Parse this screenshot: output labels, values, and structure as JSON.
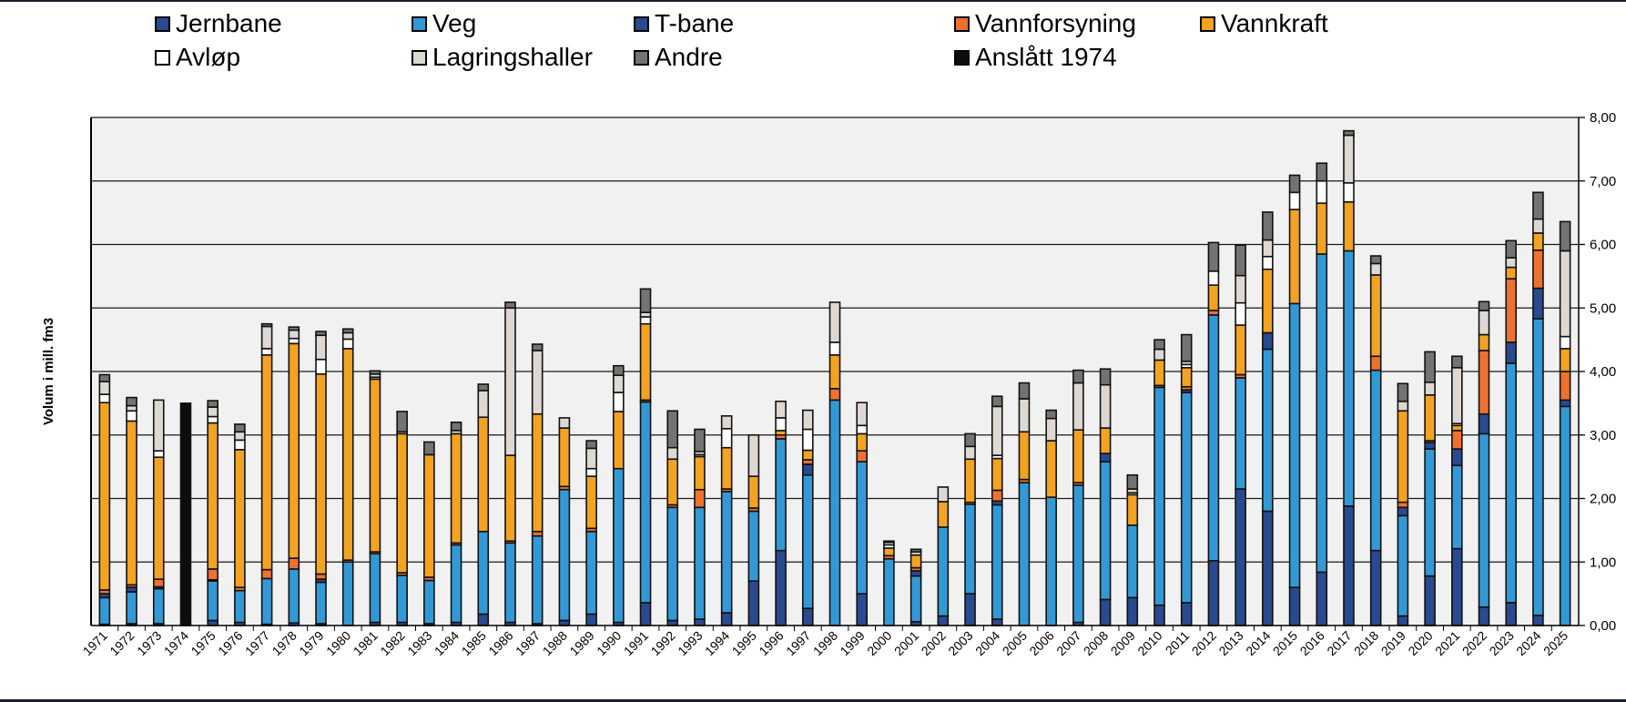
{
  "chart_data": {
    "type": "bar",
    "stacked": true,
    "title": "",
    "xlabel": "",
    "ylabel": "Volum i mill. fm3",
    "ylim": [
      0,
      8
    ],
    "yticks": [
      "0,00",
      "1,00",
      "2,00",
      "3,00",
      "4,00",
      "5,00",
      "6,00",
      "7,00",
      "8,00"
    ],
    "y_axis_side": "right",
    "grid": true,
    "legend_position": "top",
    "categories": [
      "1971",
      "1972",
      "1973",
      "1974",
      "1975",
      "1976",
      "1977",
      "1978",
      "1979",
      "1980",
      "1981",
      "1982",
      "1983",
      "1984",
      "1985",
      "1986",
      "1987",
      "1988",
      "1989",
      "1990",
      "1991",
      "1992",
      "1993",
      "1994",
      "1995",
      "1996",
      "1997",
      "1998",
      "1999",
      "2000",
      "2001",
      "2002",
      "2003",
      "2004",
      "2005",
      "2006",
      "2007",
      "2008",
      "2009",
      "2010",
      "2011",
      "2012",
      "2013",
      "2014",
      "2015",
      "2016",
      "2017",
      "2018",
      "2019",
      "2020",
      "2021",
      "2022",
      "2023",
      "2024",
      "2025"
    ],
    "series": [
      {
        "name": "Jernbane",
        "color": "#2a4a8f",
        "values": [
          0.02,
          0.03,
          0.03,
          0,
          0.08,
          0.05,
          0.02,
          0.04,
          0.03,
          0,
          0.05,
          0.05,
          0.03,
          0.05,
          0.18,
          0.05,
          0.03,
          0.08,
          0.18,
          0.05,
          0.36,
          0.08,
          0.1,
          0.2,
          0.7,
          1.18,
          0.27,
          0,
          0.5,
          0,
          0.06,
          0.15,
          0.5,
          0.1,
          0,
          0,
          0.05,
          0.41,
          0.44,
          0.32,
          0.36,
          1.02,
          2.15,
          1.8,
          0.6,
          0.84,
          1.88,
          1.18,
          0.15,
          0.78,
          1.21,
          0.29,
          0.36,
          0.16,
          0
        ]
      },
      {
        "name": "Veg",
        "color": "#3399d6",
        "values": [
          0.42,
          0.5,
          0.55,
          0,
          0.62,
          0.5,
          0.72,
          0.85,
          0.65,
          1.0,
          1.08,
          0.74,
          0.68,
          1.22,
          1.3,
          1.25,
          1.38,
          2.06,
          1.3,
          2.42,
          3.16,
          1.78,
          1.76,
          1.91,
          1.1,
          1.76,
          2.1,
          3.55,
          2.08,
          1.05,
          0.72,
          1.4,
          1.41,
          1.8,
          2.25,
          2.02,
          2.16,
          2.17,
          1.14,
          3.43,
          3.31,
          3.87,
          1.75,
          2.55,
          4.47,
          5.01,
          4.02,
          2.84,
          1.58,
          2.0,
          1.31,
          2.73,
          3.77,
          4.67,
          3.45
        ]
      },
      {
        "name": "T-bane",
        "color": "#2a4a8f",
        "values": [
          0.06,
          0.07,
          0.03,
          0,
          0.02,
          0,
          0,
          0,
          0.05,
          0,
          0,
          0,
          0,
          0,
          0,
          0,
          0,
          0,
          0,
          0,
          0,
          0,
          0,
          0,
          0,
          0,
          0.17,
          0,
          0,
          0,
          0.08,
          0,
          0,
          0.06,
          0,
          0,
          0,
          0.13,
          0,
          0,
          0.04,
          0,
          0,
          0.26,
          0,
          0,
          0,
          0,
          0.13,
          0.1,
          0.26,
          0.31,
          0.33,
          0.48,
          0.1
        ]
      },
      {
        "name": "Vannforsyning",
        "color": "#ee7130",
        "values": [
          0.06,
          0.04,
          0.12,
          0,
          0.17,
          0.05,
          0.14,
          0.17,
          0.08,
          0.03,
          0.03,
          0.04,
          0.05,
          0.03,
          0,
          0.03,
          0.07,
          0.05,
          0.05,
          0,
          0.03,
          0.04,
          0.28,
          0.04,
          0.05,
          0.06,
          0.07,
          0.18,
          0.17,
          0.05,
          0.05,
          0,
          0.03,
          0.17,
          0.05,
          0,
          0.04,
          0,
          0,
          0.03,
          0.05,
          0.07,
          0.05,
          0,
          0,
          0,
          0,
          0.22,
          0.08,
          0.03,
          0.29,
          1.0,
          1.0,
          0.6,
          0.45
        ]
      },
      {
        "name": "Vannkraft",
        "color": "#f3a322",
        "values": [
          2.95,
          2.58,
          1.92,
          0,
          2.3,
          2.17,
          3.38,
          3.38,
          3.15,
          3.33,
          2.72,
          2.19,
          1.93,
          1.72,
          1.8,
          1.35,
          1.85,
          0.92,
          0.82,
          0.9,
          1.2,
          0.72,
          0.52,
          0.65,
          0.5,
          0.07,
          0.15,
          0.53,
          0.27,
          0.12,
          0.2,
          0.4,
          0.68,
          0.5,
          0.75,
          0.89,
          0.83,
          0.4,
          0.48,
          0.4,
          0.3,
          0.4,
          0.78,
          1.0,
          1.48,
          0.8,
          0.77,
          1.28,
          1.44,
          0.72,
          0.08,
          0.25,
          0.18,
          0.27,
          0.36
        ]
      },
      {
        "name": "Avløp",
        "color": "#ffffff",
        "values": [
          0.13,
          0.16,
          0.1,
          0,
          0.1,
          0.15,
          0.1,
          0.08,
          0.23,
          0.15,
          0.03,
          0.03,
          0,
          0,
          0,
          0,
          0,
          0,
          0.12,
          0.3,
          0.11,
          0,
          0.03,
          0.3,
          0,
          0.2,
          0.33,
          0.2,
          0.13,
          0.05,
          0,
          0,
          0,
          0.05,
          0,
          0,
          0,
          0,
          0.03,
          0,
          0.05,
          0.22,
          0.35,
          0.2,
          0.27,
          0.35,
          0.3,
          0,
          0,
          0,
          0.03,
          0,
          0,
          0,
          0.19
        ]
      },
      {
        "name": "Lagringshaller",
        "color": "#ddd8d2",
        "values": [
          0.2,
          0.08,
          0.8,
          0,
          0.15,
          0.13,
          0.35,
          0.13,
          0.38,
          0.1,
          0.05,
          0,
          0,
          0.05,
          0.42,
          2.32,
          1.0,
          0.16,
          0.32,
          0.27,
          0.07,
          0.18,
          0.05,
          0.2,
          0.65,
          0.26,
          0.3,
          0.63,
          0.36,
          0.04,
          0.05,
          0.23,
          0.2,
          0.77,
          0.52,
          0.35,
          0.74,
          0.68,
          0.06,
          0.17,
          0.05,
          0,
          0.43,
          0.26,
          0,
          0,
          0.75,
          0.18,
          0.15,
          0.2,
          0.88,
          0.38,
          0.15,
          0.22,
          1.35
        ]
      },
      {
        "name": "Andre",
        "color": "#737373",
        "values": [
          0.11,
          0.13,
          0,
          0,
          0.1,
          0.12,
          0.04,
          0.05,
          0.06,
          0.06,
          0.05,
          0.32,
          0.2,
          0.13,
          0.1,
          0.09,
          0.1,
          0,
          0.12,
          0.15,
          0.37,
          0.58,
          0.35,
          0,
          0,
          0,
          0,
          0,
          0,
          0.02,
          0.04,
          0,
          0.2,
          0.16,
          0.25,
          0.13,
          0.2,
          0.25,
          0.22,
          0.15,
          0.42,
          0.45,
          0.48,
          0.44,
          0.27,
          0.28,
          0.07,
          0.12,
          0.28,
          0.48,
          0.18,
          0.14,
          0.27,
          0.42,
          0.46
        ]
      },
      {
        "name": "Anslått 1974",
        "color": "#0d0d0d",
        "values": [
          0,
          0,
          0,
          3.5,
          0,
          0,
          0,
          0,
          0,
          0,
          0,
          0,
          0,
          0,
          0,
          0,
          0,
          0,
          0,
          0,
          0,
          0,
          0,
          0,
          0,
          0,
          0,
          0,
          0,
          0,
          0,
          0,
          0,
          0,
          0,
          0,
          0,
          0,
          0,
          0,
          0,
          0,
          0,
          0,
          0,
          0,
          0,
          0,
          0,
          0,
          0,
          0,
          0,
          0,
          0
        ]
      }
    ]
  }
}
